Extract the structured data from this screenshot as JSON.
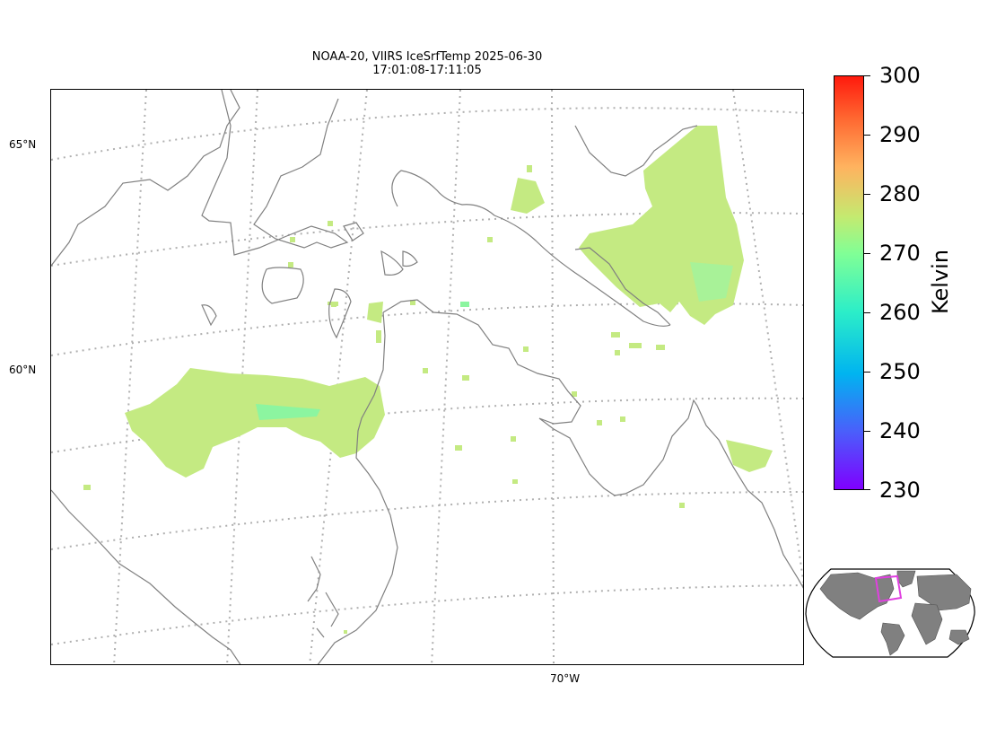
{
  "title_line1": "NOAA-20, VIIRS IceSrfTemp 2025-06-30",
  "title_line2": "17:01:08-17:11:05",
  "lat_labels": [
    "65°N",
    "60°N"
  ],
  "lon_labels": [
    "70°W"
  ],
  "colorbar": {
    "title": "Kelvin",
    "ticks": [
      "300",
      "290",
      "280",
      "270",
      "260",
      "250",
      "240",
      "230"
    ],
    "min": 230,
    "max": 300,
    "colormap": "rainbow"
  },
  "colors": {
    "coastline": "#808080",
    "gridline": "#b0b0b0",
    "data_main": "#c4ea82",
    "data_cool": "#8cf5a0",
    "inset_land": "#808080",
    "inset_box": "#e040e0"
  }
}
